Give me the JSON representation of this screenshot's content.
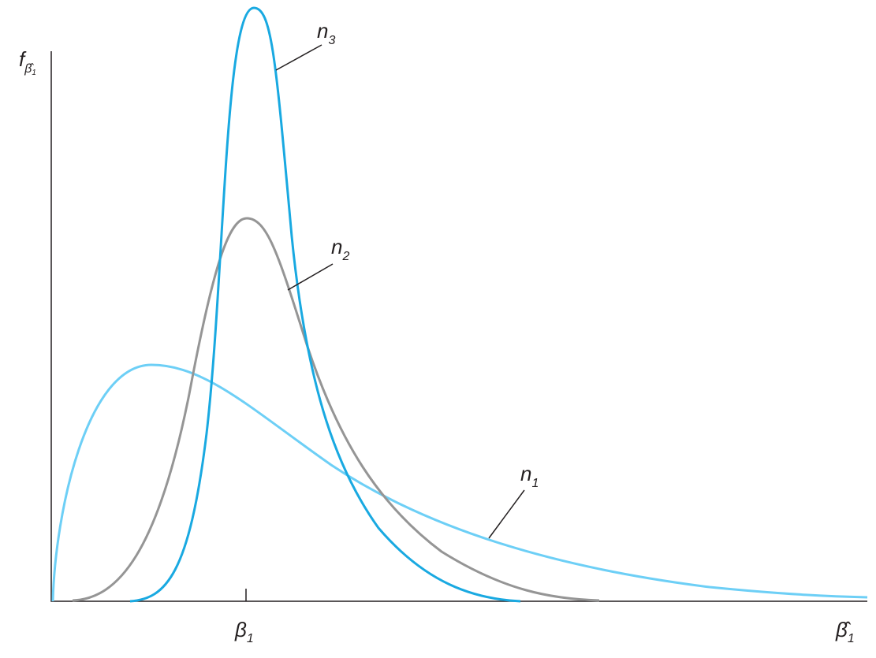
{
  "y_axis_label": {
    "symbol": "f",
    "subscript": "β̂",
    "subsubscript": "1"
  },
  "x_tick_label": {
    "symbol": "β",
    "subscript": "1"
  },
  "x_axis_label": {
    "symbol": "β̂",
    "subscript": "1"
  },
  "curves": [
    {
      "label": "n",
      "subscript": "1"
    },
    {
      "label": "n",
      "subscript": "2"
    },
    {
      "label": "n",
      "subscript": "3"
    }
  ]
}
